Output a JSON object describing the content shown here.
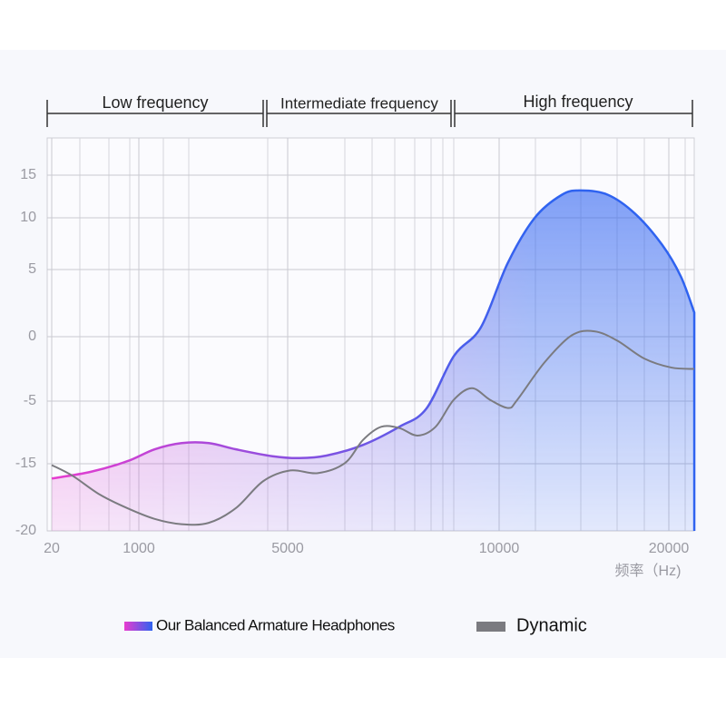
{
  "chart_data": {
    "type": "area-line",
    "annotations": [
      "Low frequency",
      "Intermediate frequency",
      "High frequency"
    ],
    "x_label": "频率（Hz)",
    "xlim": [
      20,
      21500
    ],
    "xticks": [
      20,
      1000,
      5000,
      10000,
      20000
    ],
    "ylim": [
      -20,
      19
    ],
    "yticks": [
      15,
      10,
      5,
      0,
      -5,
      -15,
      -20
    ],
    "grid": true,
    "legend": "bottom",
    "series": [
      {
        "name": "Our Balanced Armature Headphones",
        "color": "#2f63f0",
        "gradient": [
          "#e83ccf",
          "#2f63f0"
        ],
        "fill": true,
        "x": [
          20,
          460,
          870,
          1420,
          2150,
          2880,
          3610,
          4590,
          5280,
          5920,
          6780,
          7640,
          8280,
          8930,
          9570,
          10500,
          12100,
          13700,
          14800,
          16400,
          18000,
          19600,
          20700,
          21500
        ],
        "values": [
          -16.1,
          -15.6,
          -14.6,
          -12.7,
          -11.7,
          -11.7,
          -12.7,
          -13.8,
          -14.1,
          -13.7,
          -12.0,
          -9.1,
          -6.2,
          -1.5,
          0.7,
          5.6,
          10,
          12.7,
          13.2,
          12.7,
          10.5,
          7.4,
          4.5,
          1.8
        ]
      },
      {
        "name": "Dynamic",
        "color": "#7b7b80",
        "fill": false,
        "x": [
          20,
          255,
          561,
          867,
          1415,
          2146,
          2878,
          3610,
          4341,
          5064,
          5708,
          6352,
          6781,
          7210,
          7640,
          8069,
          8498,
          8927,
          9356,
          9785,
          10535,
          11070,
          12674,
          14278,
          15615,
          16952,
          18556,
          20160,
          21497
        ],
        "values": [
          -15.1,
          -15.9,
          -17.3,
          -18.3,
          -19.1,
          -19.5,
          -19.4,
          -18.3,
          -16.3,
          -15.5,
          -15.7,
          -14.9,
          -11.2,
          -9.1,
          -9.3,
          -10.5,
          -9.1,
          -4.9,
          -4.0,
          -4.9,
          -6.1,
          -4.9,
          -2.0,
          0.1,
          0.4,
          -0.3,
          -1.7,
          -2.4,
          -2.5
        ]
      }
    ]
  }
}
